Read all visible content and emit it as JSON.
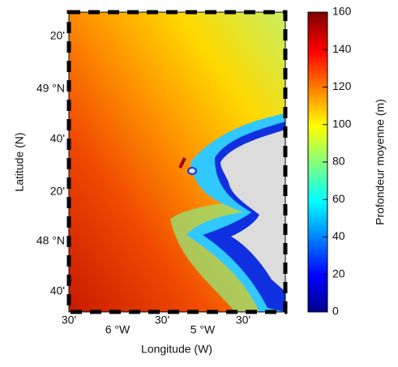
{
  "map": {
    "x_label": "Longitude (W)",
    "y_label": "Latitude (N)",
    "latitude_ticks": [
      "20'",
      "49 °N",
      "40'",
      "20'",
      "48 °N",
      "40'"
    ],
    "longitude_ticks": [
      "30'",
      "6 °W",
      "30'",
      "5 °W",
      "30'"
    ]
  },
  "colorbar": {
    "label": "Profondeur moyenne (m)",
    "lim": [
      0,
      160
    ],
    "ticks": [
      0,
      20,
      40,
      60,
      80,
      100,
      120,
      140,
      160
    ]
  }
}
